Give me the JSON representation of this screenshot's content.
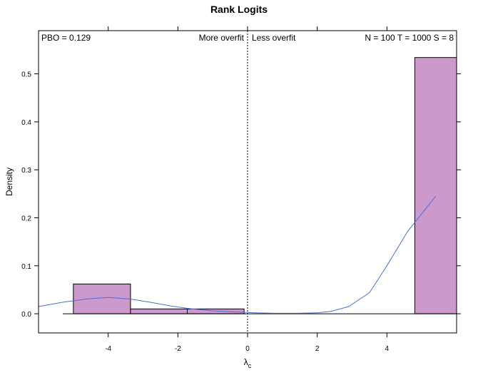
{
  "chart_data": {
    "type": "bar",
    "title": "Rank Logits",
    "xlabel": "λ",
    "xlabel_subscript": "c",
    "ylabel": "Density",
    "xlim": [
      -6,
      6
    ],
    "ylim": [
      -0.04,
      0.59
    ],
    "x_ticks": [
      -4,
      -2,
      0,
      2,
      4
    ],
    "y_ticks": [
      0.0,
      0.1,
      0.2,
      0.3,
      0.4,
      0.5
    ],
    "x_tick_labels": [
      "-4",
      "-2",
      "0",
      "2",
      "4"
    ],
    "y_tick_labels": [
      "0.0",
      "0.1",
      "0.2",
      "0.3",
      "0.4",
      "0.5"
    ],
    "bars": [
      {
        "x0": -5.0,
        "x1": -3.36,
        "value": 0.062
      },
      {
        "x0": -3.36,
        "x1": -1.73,
        "value": 0.01
      },
      {
        "x0": -1.73,
        "x1": -0.1,
        "value": 0.01
      },
      {
        "x0": 4.8,
        "x1": 6.0,
        "value": 0.534
      }
    ],
    "baseline": {
      "x0": -5.3,
      "x1": 6.0,
      "value": 0.0
    },
    "density_curve": {
      "x": [
        -6.0,
        -5.3,
        -4.6,
        -4.0,
        -3.4,
        -2.8,
        -2.2,
        -1.6,
        -1.0,
        -0.4,
        0.2,
        0.8,
        1.4,
        2.0,
        2.4,
        2.9,
        3.5,
        4.0,
        4.6,
        5.4
      ],
      "y": [
        0.015,
        0.024,
        0.031,
        0.034,
        0.031,
        0.024,
        0.016,
        0.01,
        0.006,
        0.004,
        0.002,
        0.001,
        0.001,
        0.002,
        0.005,
        0.015,
        0.044,
        0.1,
        0.172,
        0.245
      ]
    },
    "vline_x": 0,
    "bar_color": "#cc99cc",
    "curve_color": "#4a6fd8",
    "grid": false,
    "annotations": {
      "pbo": "PBO = 0.129",
      "more_overfit": "More overfit",
      "less_overfit": "Less overfit",
      "stats": "N = 100  T = 1000  S = 8"
    }
  }
}
